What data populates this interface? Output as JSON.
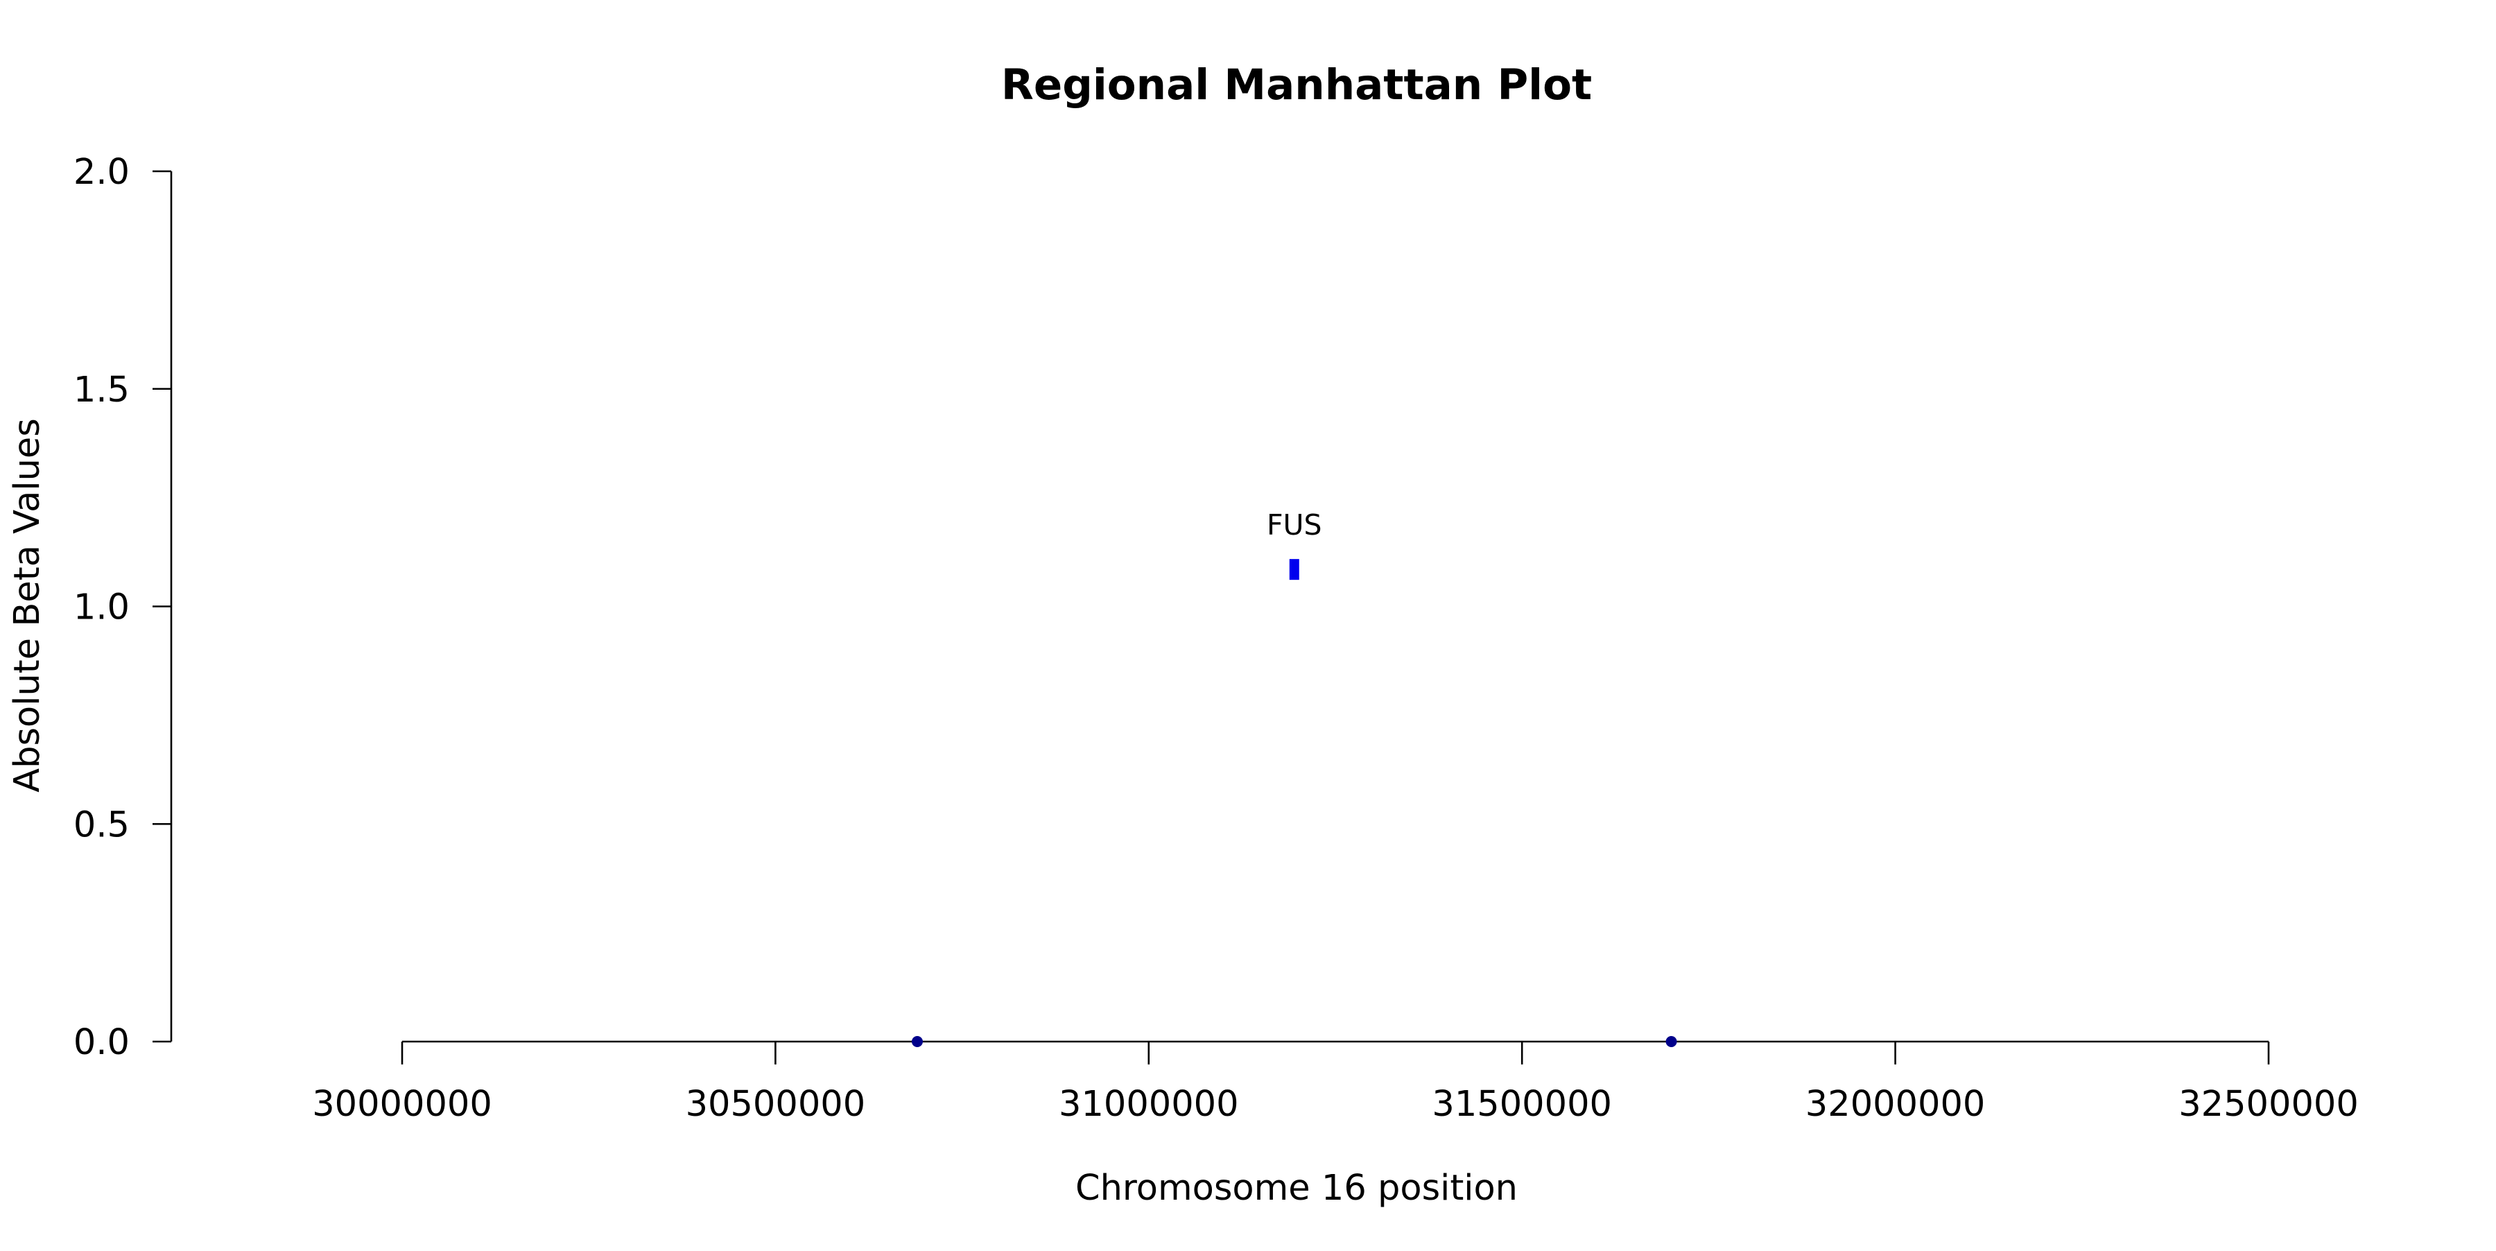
{
  "chart_data": {
    "type": "scatter",
    "title": "Regional Manhattan Plot",
    "xlabel": "Chromosome 16 position",
    "ylabel": "Absolute Beta Values",
    "xlim": [
      30000000,
      32500000
    ],
    "ylim": [
      0,
      2
    ],
    "x_ticks": [
      "30000000",
      "30500000",
      "31000000",
      "31500000",
      "32000000",
      "32500000"
    ],
    "y_ticks": [
      "0.0",
      "0.5",
      "1.0",
      "1.5",
      "2.0"
    ],
    "grid": false,
    "legend": "none",
    "series": [
      {
        "color": "#0000ee",
        "marker": "square",
        "points": [
          {
            "x": 31195000,
            "y": 1.085,
            "label": "FUS"
          }
        ]
      },
      {
        "color": "#00008b",
        "marker": "circle",
        "points": [
          {
            "x": 30690000,
            "y": 0.0
          },
          {
            "x": 31700000,
            "y": 0.0
          }
        ]
      }
    ]
  }
}
